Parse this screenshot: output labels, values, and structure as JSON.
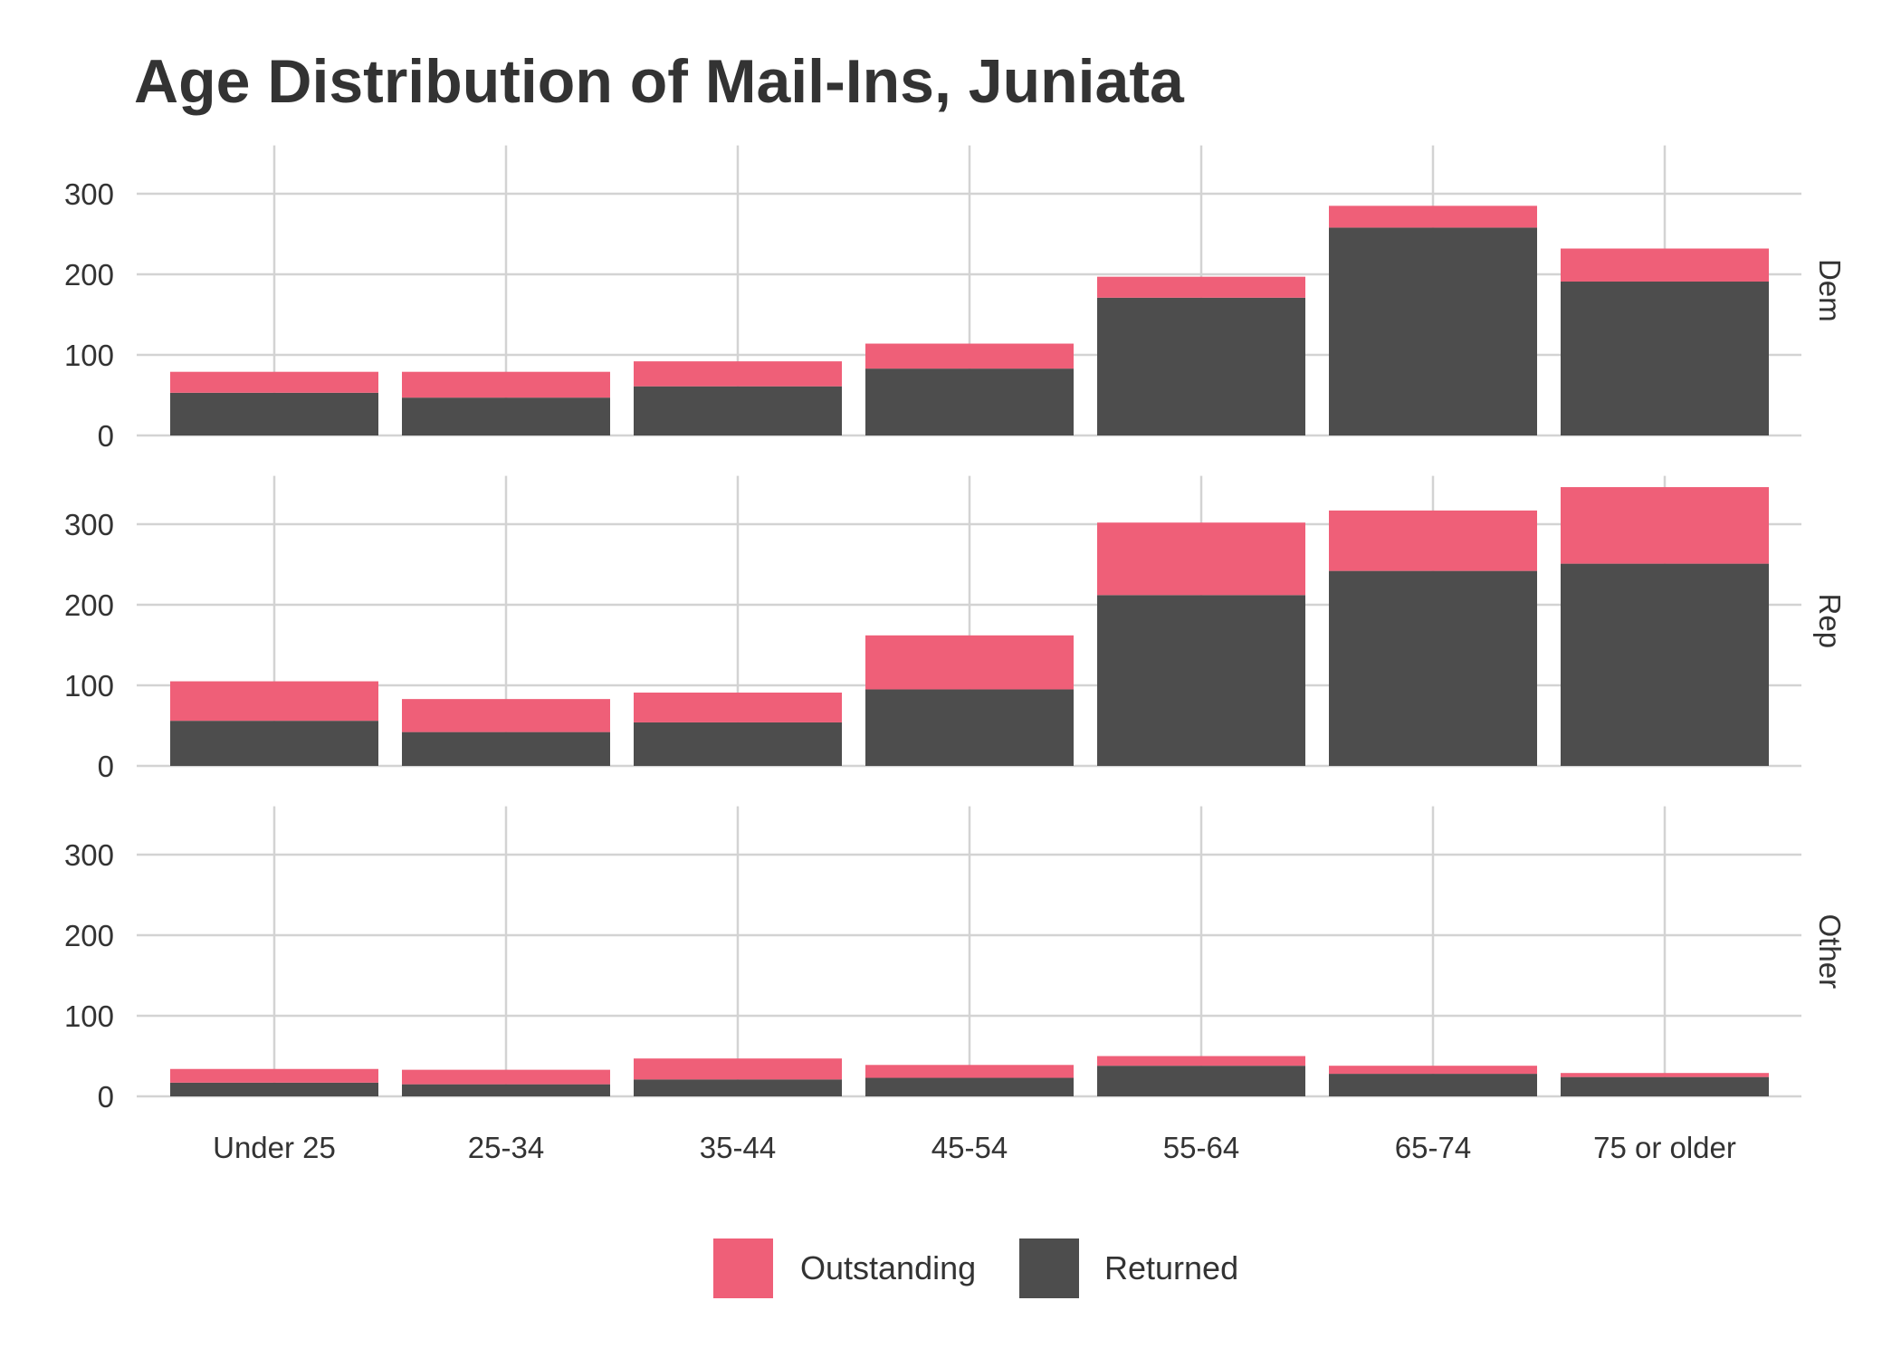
{
  "chart_data": {
    "type": "bar",
    "stacked": true,
    "title": "Age Distribution of Mail-Ins, Juniata",
    "xlabel": "",
    "ylabel": "",
    "categories": [
      "Under 25",
      "25-34",
      "35-44",
      "45-54",
      "55-64",
      "65-74",
      "75 or older"
    ],
    "ylim": [
      0,
      360
    ],
    "yticks": [
      0,
      100,
      200,
      300
    ],
    "grid": true,
    "legend_position": "bottom",
    "series_order": [
      "Returned",
      "Outstanding"
    ],
    "legend": [
      {
        "name": "Outstanding",
        "color": "#EF5F78"
      },
      {
        "name": "Returned",
        "color": "#4D4D4D"
      }
    ],
    "facets": [
      {
        "label": "Dem",
        "series": [
          {
            "name": "Returned",
            "values": [
              53,
              47,
              61,
              83,
              171,
              258,
              191
            ]
          },
          {
            "name": "Outstanding",
            "values": [
              26,
              32,
              31,
              31,
              26,
              27,
              41
            ]
          }
        ]
      },
      {
        "label": "Rep",
        "series": [
          {
            "name": "Returned",
            "values": [
              56,
              42,
              54,
              95,
              212,
              242,
              251
            ]
          },
          {
            "name": "Outstanding",
            "values": [
              49,
              41,
              37,
              67,
              90,
              75,
              95
            ]
          }
        ]
      },
      {
        "label": "Other",
        "series": [
          {
            "name": "Returned",
            "values": [
              17,
              15,
              21,
              23,
              38,
              28,
              24
            ]
          },
          {
            "name": "Outstanding",
            "values": [
              17,
              18,
              26,
              16,
              12,
              10,
              5
            ]
          }
        ]
      }
    ]
  }
}
